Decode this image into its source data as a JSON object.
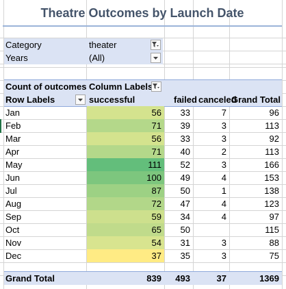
{
  "title": "Theatre Outcomes by Launch Date",
  "filters": [
    {
      "label": "Category",
      "value": "theater",
      "icon": "filter-dropdown-icon"
    },
    {
      "label": "Years",
      "value": "(All)",
      "icon": "chevron-down-icon"
    }
  ],
  "pivot": {
    "count_label": "Count of outcomes",
    "column_labels": "Column Labels",
    "row_labels": "Row Labels",
    "headers": [
      "successful",
      "failed",
      "canceled",
      "Grand Total"
    ],
    "rows": [
      {
        "label": "Jan",
        "successful": "56",
        "failed": "33",
        "canceled": "7",
        "total": "96"
      },
      {
        "label": "Feb",
        "successful": "71",
        "failed": "39",
        "canceled": "3",
        "total": "113"
      },
      {
        "label": "Mar",
        "successful": "56",
        "failed": "33",
        "canceled": "3",
        "total": "92"
      },
      {
        "label": "Apr",
        "successful": "71",
        "failed": "40",
        "canceled": "2",
        "total": "113"
      },
      {
        "label": "May",
        "successful": "111",
        "failed": "52",
        "canceled": "3",
        "total": "166"
      },
      {
        "label": "Jun",
        "successful": "100",
        "failed": "49",
        "canceled": "4",
        "total": "153"
      },
      {
        "label": "Jul",
        "successful": "87",
        "failed": "50",
        "canceled": "1",
        "total": "138"
      },
      {
        "label": "Aug",
        "successful": "72",
        "failed": "47",
        "canceled": "4",
        "total": "123"
      },
      {
        "label": "Sep",
        "successful": "59",
        "failed": "34",
        "canceled": "4",
        "total": "97"
      },
      {
        "label": "Oct",
        "successful": "65",
        "failed": "50",
        "canceled": "",
        "total": "115"
      },
      {
        "label": "Nov",
        "successful": "54",
        "failed": "31",
        "canceled": "3",
        "total": "88"
      },
      {
        "label": "Dec",
        "successful": "37",
        "failed": "35",
        "canceled": "3",
        "total": "75"
      }
    ],
    "grand_total": {
      "label": "Grand Total",
      "successful": "839",
      "failed": "493",
      "canceled": "37",
      "total": "1369"
    }
  },
  "heatmap_colors": {
    "Jan": "#d4e38e",
    "Feb": "#b4d88a",
    "Mar": "#d4e38e",
    "Apr": "#b4d88a",
    "May": "#63be7b",
    "Jun": "#7dc67e",
    "Jul": "#9dd184",
    "Aug": "#b2d789",
    "Sep": "#cde08d",
    "Oct": "#c0db8b",
    "Nov": "#d8e48f",
    "Dec": "#ffeb84"
  },
  "colors": {
    "title": "#44546a",
    "header_fill": "#dbe3f4",
    "accent": "#8ea9db"
  }
}
